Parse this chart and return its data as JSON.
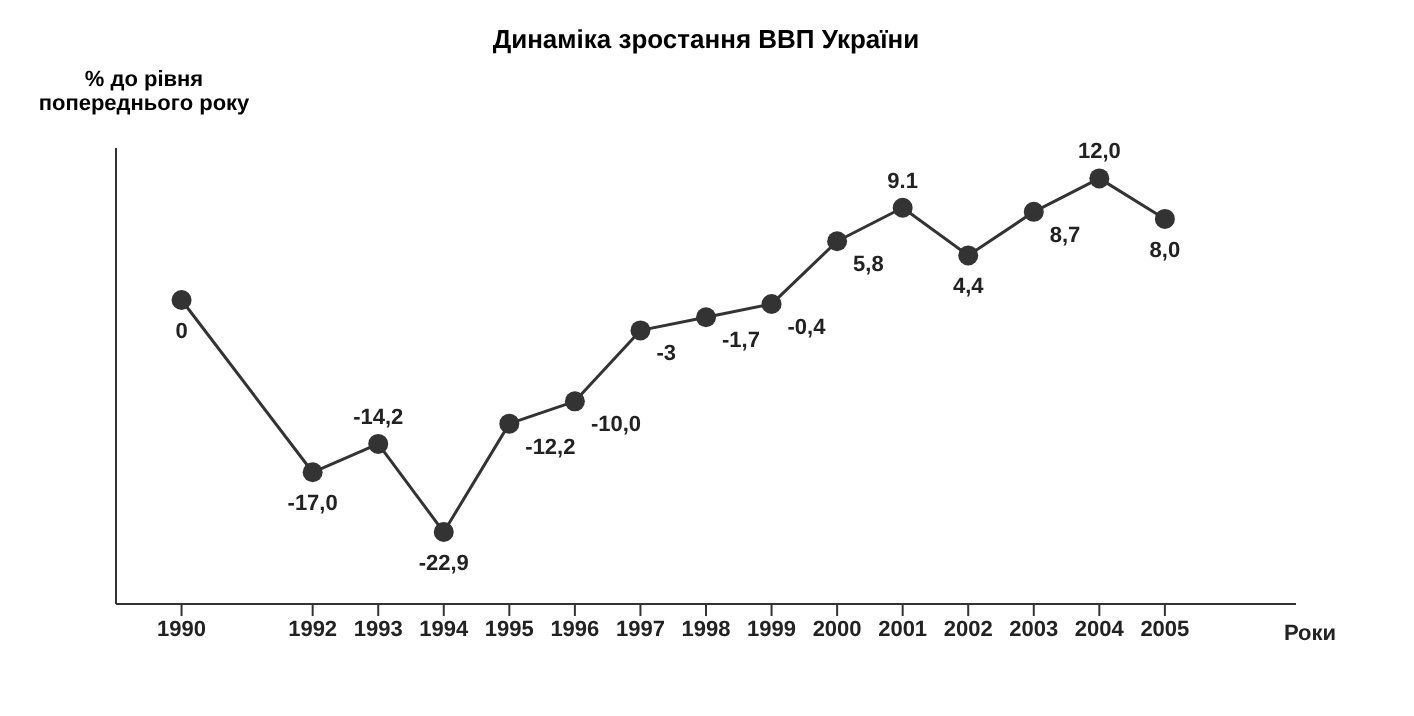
{
  "chart_data": {
    "type": "line",
    "title": "Динаміка зростання ВВП України",
    "ylabel": "% до рівня попереднього року",
    "xlabel": "Роки",
    "x": [
      1990,
      1992,
      1993,
      1994,
      1995,
      1996,
      1997,
      1998,
      1999,
      2000,
      2001,
      2002,
      2003,
      2004,
      2005
    ],
    "series": [
      {
        "color": "#333333",
        "values": [
          0,
          -17.0,
          -14.2,
          -22.9,
          -12.2,
          -10.0,
          -3,
          -1.7,
          -0.4,
          5.8,
          9.1,
          4.4,
          8.7,
          12.0,
          8.0
        ],
        "value_labels": [
          "0",
          "-17,0",
          "-14,2",
          "-22,9",
          "-12,2",
          "-10,0",
          "-3",
          "-1,7",
          "-0,4",
          "5,8",
          "9.1",
          "4,4",
          "8,7",
          "12,0",
          "8,0"
        ]
      }
    ],
    "xlim": [
      1989,
      2007
    ],
    "xticks": [
      1990,
      1992,
      1993,
      1994,
      1995,
      1996,
      1997,
      1998,
      1999,
      2000,
      2001,
      2002,
      2003,
      2004,
      2005
    ],
    "ylim": [
      -30,
      15
    ],
    "tick_labels": "x",
    "marker": "circle",
    "line_style": "solid"
  }
}
